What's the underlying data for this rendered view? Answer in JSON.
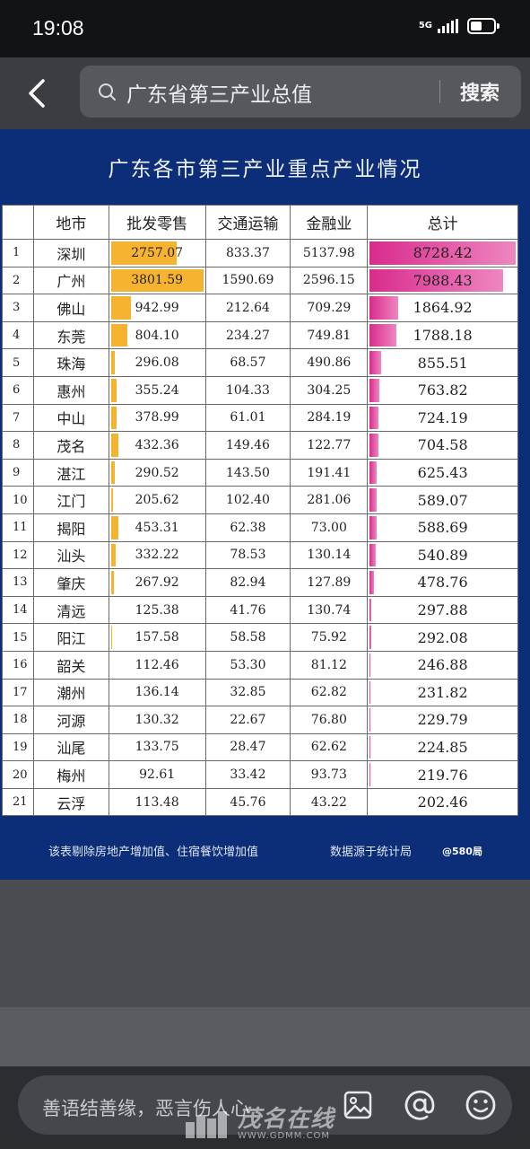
{
  "status_bar": {
    "time": "19:08",
    "network": "5G",
    "icons": [
      "signal-icon",
      "battery-icon"
    ]
  },
  "search": {
    "query": "广东省第三产业总值",
    "button": "搜索"
  },
  "table": {
    "title": "广东各市第三产业重点产业情况",
    "headers": [
      "",
      "地市",
      "批发零售",
      "交通运输",
      "金融业",
      "总计"
    ],
    "rows": [
      [
        "1",
        "深圳",
        "2757.07",
        "833.37",
        "5137.98",
        "8728.42"
      ],
      [
        "2",
        "广州",
        "3801.59",
        "1590.69",
        "2596.15",
        "7988.43"
      ],
      [
        "3",
        "佛山",
        "942.99",
        "212.64",
        "709.29",
        "1864.92"
      ],
      [
        "4",
        "东莞",
        "804.10",
        "234.27",
        "749.81",
        "1788.18"
      ],
      [
        "5",
        "珠海",
        "296.08",
        "68.57",
        "490.86",
        "855.51"
      ],
      [
        "6",
        "惠州",
        "355.24",
        "104.33",
        "304.25",
        "763.82"
      ],
      [
        "7",
        "中山",
        "378.99",
        "61.01",
        "284.19",
        "724.19"
      ],
      [
        "8",
        "茂名",
        "432.36",
        "149.46",
        "122.77",
        "704.58"
      ],
      [
        "9",
        "湛江",
        "290.52",
        "143.50",
        "191.41",
        "625.43"
      ],
      [
        "10",
        "江门",
        "205.62",
        "102.40",
        "281.06",
        "589.07"
      ],
      [
        "11",
        "揭阳",
        "453.31",
        "62.38",
        "73.00",
        "588.69"
      ],
      [
        "12",
        "汕头",
        "332.22",
        "78.53",
        "130.14",
        "540.89"
      ],
      [
        "13",
        "肇庆",
        "267.92",
        "82.94",
        "127.89",
        "478.76"
      ],
      [
        "14",
        "清远",
        "125.38",
        "41.76",
        "130.74",
        "297.88"
      ],
      [
        "15",
        "阳江",
        "157.58",
        "58.58",
        "75.92",
        "292.08"
      ],
      [
        "16",
        "韶关",
        "112.46",
        "53.30",
        "81.12",
        "246.88"
      ],
      [
        "17",
        "潮州",
        "136.14",
        "32.85",
        "62.82",
        "231.82"
      ],
      [
        "18",
        "河源",
        "130.32",
        "22.67",
        "76.80",
        "229.79"
      ],
      [
        "19",
        "汕尾",
        "133.75",
        "28.47",
        "62.62",
        "224.85"
      ],
      [
        "20",
        "梅州",
        "92.61",
        "33.42",
        "93.73",
        "219.76"
      ],
      [
        "21",
        "云浮",
        "113.48",
        "45.76",
        "43.22",
        "202.46"
      ]
    ],
    "note": "该表剔除房地产增加值、住宿餐饮增加值",
    "source": "数据源于统计局",
    "handle": "@580局",
    "colors": {
      "header_bg": "#0c2e78",
      "retail_bar": "#f6b32f",
      "total_bar": "#d92b8c"
    }
  },
  "comment": {
    "placeholder": "善语结善缘，恶言伤人心",
    "icons": [
      "image-icon",
      "at-icon",
      "emoji-icon"
    ]
  },
  "watermark": {
    "text": "茂名在线",
    "url": "WWW.GDMM.COM"
  }
}
